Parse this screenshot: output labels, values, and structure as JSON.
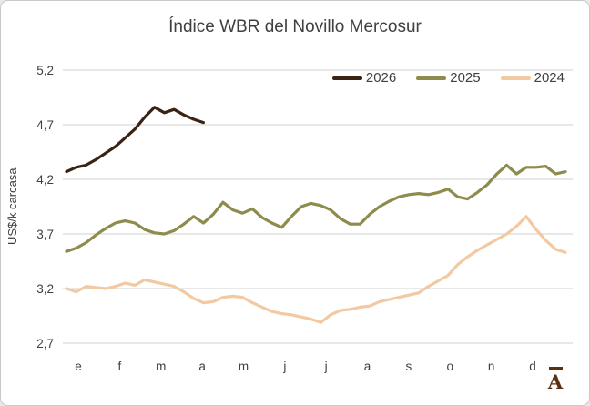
{
  "window": {
    "background": "#ffffff",
    "frame_border_color": "#c9c9c9"
  },
  "colors": {
    "gridline": "#d9d9d9",
    "text": "#404040",
    "series_2026": "#3b2314",
    "series_2025": "#8e8c4d",
    "series_2024": "#f2c9a2",
    "logo": "#5a3012"
  },
  "logo": {
    "letter": "A",
    "description": "letter A with macron bar above, bottom-right corner"
  },
  "chart_data": {
    "type": "line",
    "title": "Índice WBR del Novillo Mercosur",
    "xlabel": "",
    "ylabel": "US$/k carcasa",
    "x_unit": "weeks of the year",
    "x_tick_labels": [
      "e",
      "f",
      "m",
      "a",
      "m",
      "j",
      "j",
      "a",
      "s",
      "o",
      "n",
      "d"
    ],
    "y_tick_labels": [
      "5,2",
      "4,7",
      "4,2",
      "3,7",
      "3,2",
      "2,7"
    ],
    "y_tick_values": [
      5.2,
      4.7,
      4.2,
      3.7,
      3.2,
      2.7
    ],
    "ylim": [
      2.7,
      5.2
    ],
    "grid": true,
    "legend_position": "top-right",
    "series": [
      {
        "name": "2026",
        "color": "#3b2314",
        "values": [
          4.27,
          4.31,
          4.33,
          4.38,
          4.44,
          4.5,
          4.58,
          4.66,
          4.77,
          4.86,
          4.81,
          4.84,
          4.79,
          4.75,
          4.72
        ]
      },
      {
        "name": "2025",
        "color": "#8e8c4d",
        "values": [
          3.54,
          3.57,
          3.62,
          3.69,
          3.75,
          3.8,
          3.82,
          3.8,
          3.74,
          3.71,
          3.7,
          3.73,
          3.79,
          3.86,
          3.8,
          3.88,
          3.99,
          3.92,
          3.89,
          3.93,
          3.85,
          3.8,
          3.76,
          3.86,
          3.95,
          3.98,
          3.96,
          3.92,
          3.84,
          3.79,
          3.79,
          3.88,
          3.95,
          4.0,
          4.04,
          4.06,
          4.07,
          4.06,
          4.08,
          4.11,
          4.04,
          4.02,
          4.08,
          4.15,
          4.25,
          4.33,
          4.25,
          4.31,
          4.31,
          4.32,
          4.25,
          4.27
        ]
      },
      {
        "name": "2024",
        "color": "#f2c9a2",
        "values": [
          3.2,
          3.17,
          3.22,
          3.21,
          3.2,
          3.22,
          3.25,
          3.23,
          3.28,
          3.26,
          3.24,
          3.22,
          3.17,
          3.11,
          3.07,
          3.08,
          3.12,
          3.13,
          3.12,
          3.07,
          3.03,
          2.99,
          2.97,
          2.96,
          2.94,
          2.92,
          2.89,
          2.96,
          3.0,
          3.01,
          3.03,
          3.04,
          3.08,
          3.1,
          3.12,
          3.14,
          3.16,
          3.22,
          3.27,
          3.32,
          3.42,
          3.49,
          3.55,
          3.6,
          3.65,
          3.7,
          3.77,
          3.86,
          3.74,
          3.64,
          3.56,
          3.53
        ]
      }
    ]
  }
}
